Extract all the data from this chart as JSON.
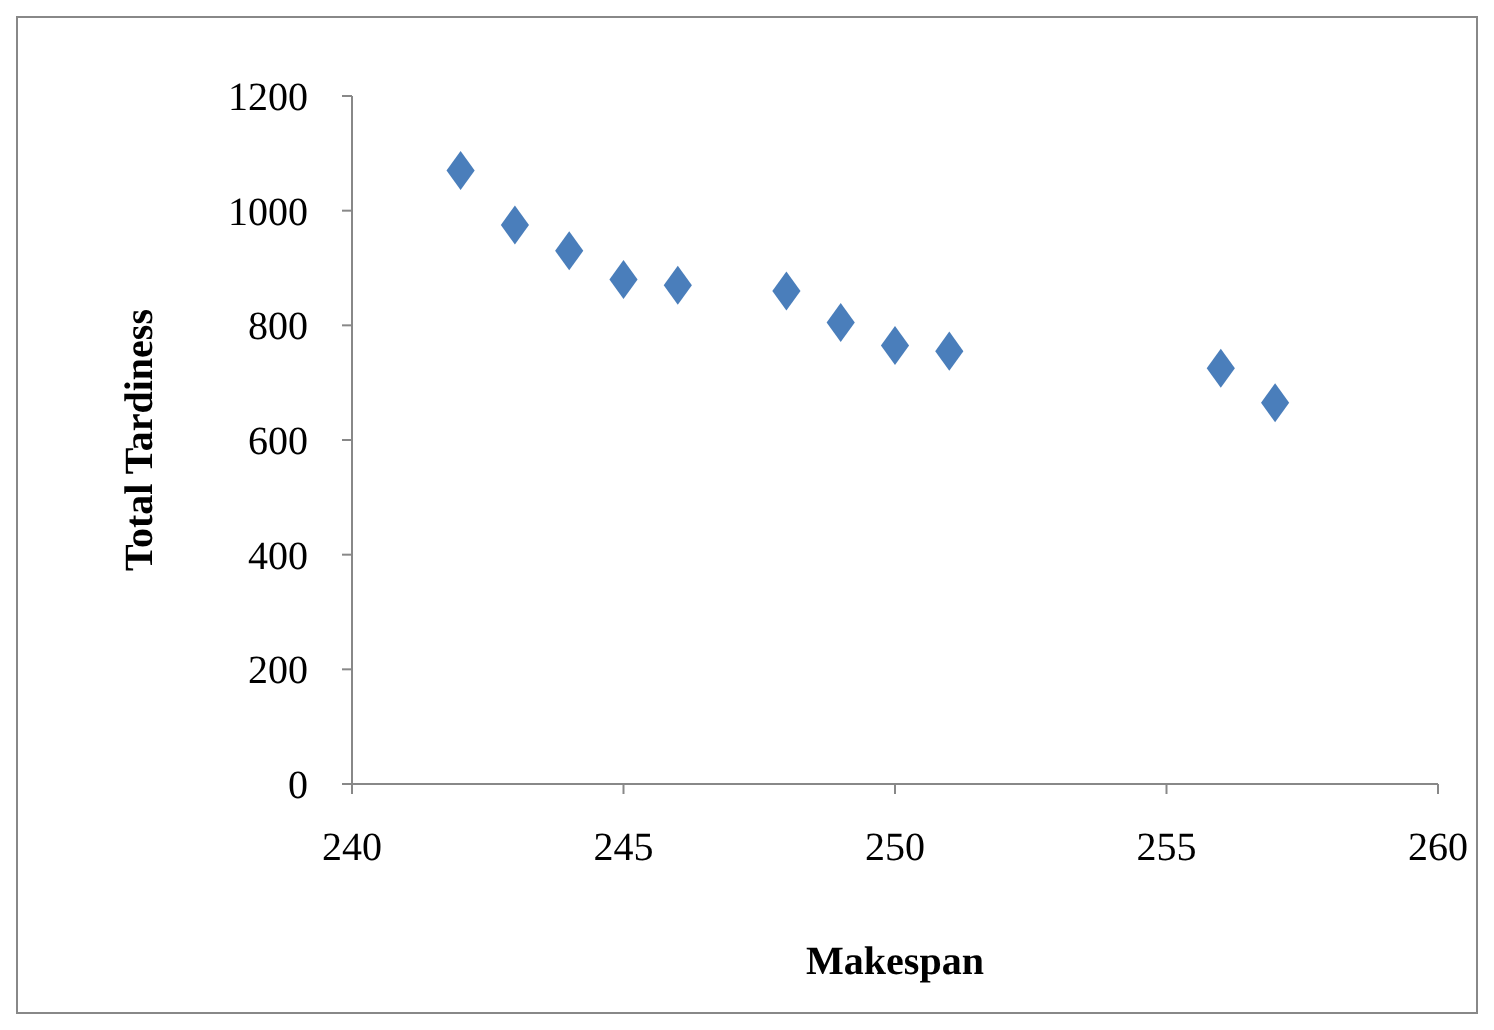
{
  "chart_data": {
    "type": "scatter",
    "xlabel": "Makespan",
    "ylabel": "Total Tardiness",
    "x": [
      242,
      243,
      244,
      245,
      246,
      248,
      249,
      250,
      251,
      256,
      257
    ],
    "values": [
      1070,
      975,
      930,
      880,
      870,
      860,
      805,
      765,
      755,
      725,
      665
    ],
    "color": "#4a7ebb",
    "marker": "diamond",
    "xlim": [
      240,
      260
    ],
    "xticks": [
      240,
      245,
      250,
      255,
      260
    ],
    "ylim": [
      0,
      1200
    ],
    "yticks": [
      0,
      200,
      400,
      600,
      800,
      1000,
      1200
    ],
    "grid": false
  }
}
